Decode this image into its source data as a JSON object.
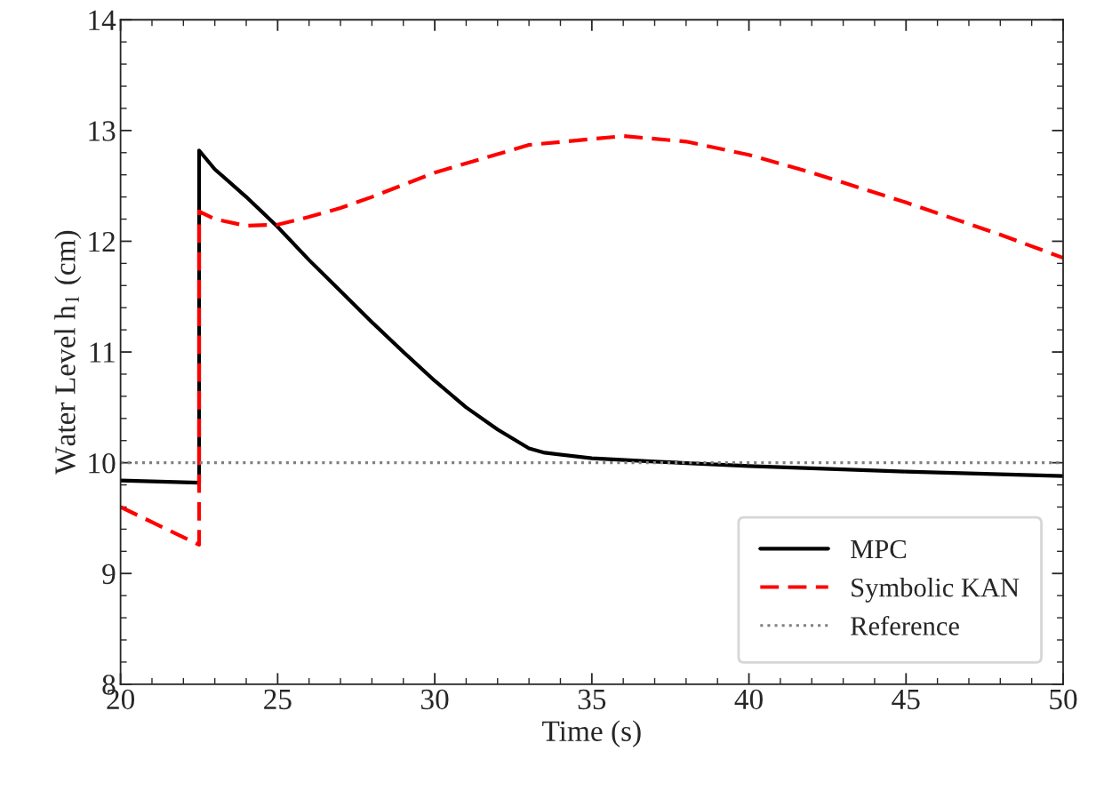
{
  "chart_data": {
    "type": "line",
    "xlabel": "Time (s)",
    "ylabel": "Water Level h$_{1}$ (cm)",
    "xlim": [
      20,
      50
    ],
    "xticks": [
      20,
      25,
      30,
      35,
      40,
      45,
      50
    ],
    "ylim": [
      8,
      14
    ],
    "yticks": [
      8,
      9,
      10,
      11,
      12,
      13,
      14
    ],
    "grid": false,
    "legend": "bottom right",
    "series": [
      {
        "name": "MPC",
        "color": "#000000",
        "line_style": "solid",
        "x": [
          20,
          22.5,
          22.5,
          23,
          24,
          25,
          26,
          27,
          28,
          29,
          30,
          31,
          32,
          33,
          33.5,
          35,
          37,
          40,
          45,
          50
        ],
        "values": [
          9.84,
          9.82,
          12.82,
          12.65,
          12.4,
          12.13,
          11.83,
          11.55,
          11.27,
          11.0,
          10.74,
          10.5,
          10.3,
          10.13,
          10.09,
          10.04,
          10.01,
          9.97,
          9.92,
          9.88
        ]
      },
      {
        "name": "Symbolic KAN",
        "color": "#ff0000",
        "line_style": "dashed",
        "x": [
          20,
          22.5,
          22.5,
          23,
          24,
          25,
          26,
          27,
          28,
          30,
          33,
          36,
          38,
          40,
          42,
          45,
          48,
          50
        ],
        "values": [
          9.6,
          9.26,
          12.27,
          12.2,
          12.14,
          12.15,
          12.22,
          12.3,
          12.4,
          12.62,
          12.87,
          12.95,
          12.9,
          12.78,
          12.62,
          12.35,
          12.06,
          11.85
        ]
      }
    ],
    "ref_lines": [
      {
        "axis": "y",
        "value": 10,
        "label": "Reference",
        "color": "#808080",
        "line_style": "dotted"
      }
    ]
  }
}
